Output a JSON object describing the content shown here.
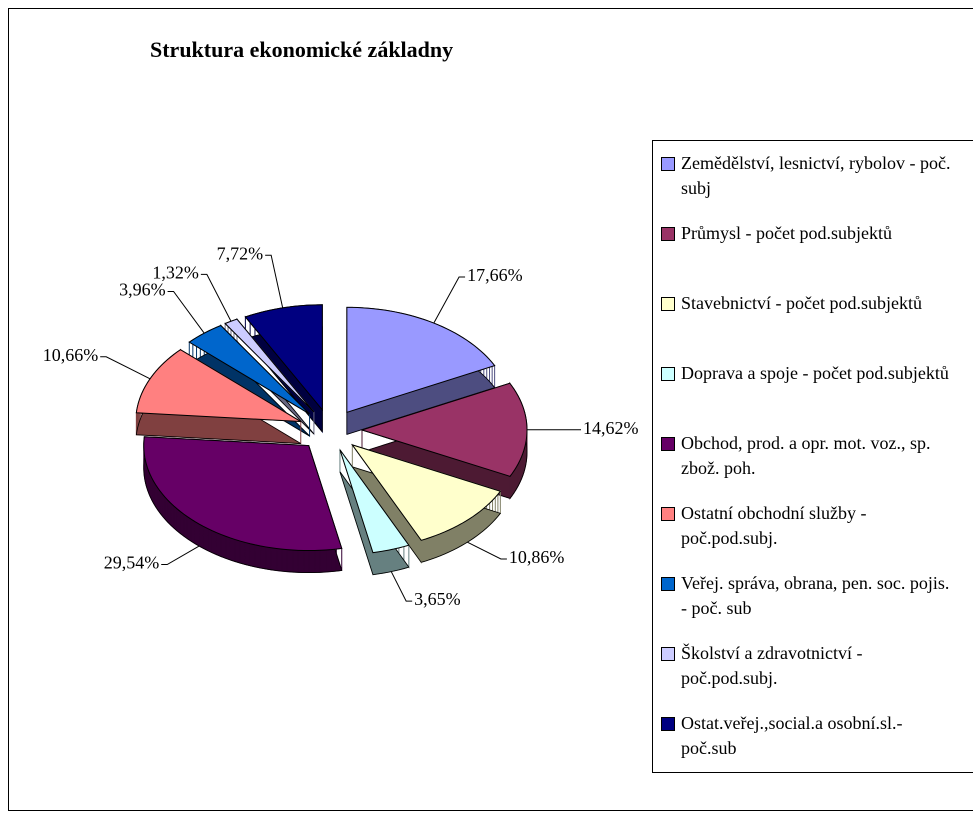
{
  "chart_data": {
    "type": "pie3d",
    "title": "Struktura ekonomické základny",
    "categories": [
      "Zemědělství, lesnictví, rybolov - poč. subj",
      "Průmysl - počet pod.subjektů",
      "Stavebnictví - počet pod.subjektů",
      "Doprava a spoje - počet pod.subjektů",
      "Obchod, prod. a opr. mot. voz., sp. zbož. poh.",
      "Ostatní obchodní služby - poč.pod.subj.",
      "Veřej. správa, obrana, pen. soc. pojis. - poč. sub",
      "Školství a zdravotnictví - poč.pod.subj.",
      "Ostat.veřej.,social.a osobní.sl.-poč.sub"
    ],
    "values": [
      17.66,
      14.62,
      10.86,
      3.65,
      29.54,
      10.66,
      3.96,
      1.32,
      7.72
    ],
    "value_labels": [
      "17,66%",
      "14,62%",
      "10,86%",
      "3,65%",
      "29,54%",
      "10,66%",
      "3,96%",
      "1,32%",
      "7,72%"
    ],
    "colors": [
      "#9999ff",
      "#993366",
      "#ffffcc",
      "#ccffff",
      "#660066",
      "#ff8080",
      "#0066cc",
      "#ccccff",
      "#000080"
    ],
    "legend": "right"
  }
}
